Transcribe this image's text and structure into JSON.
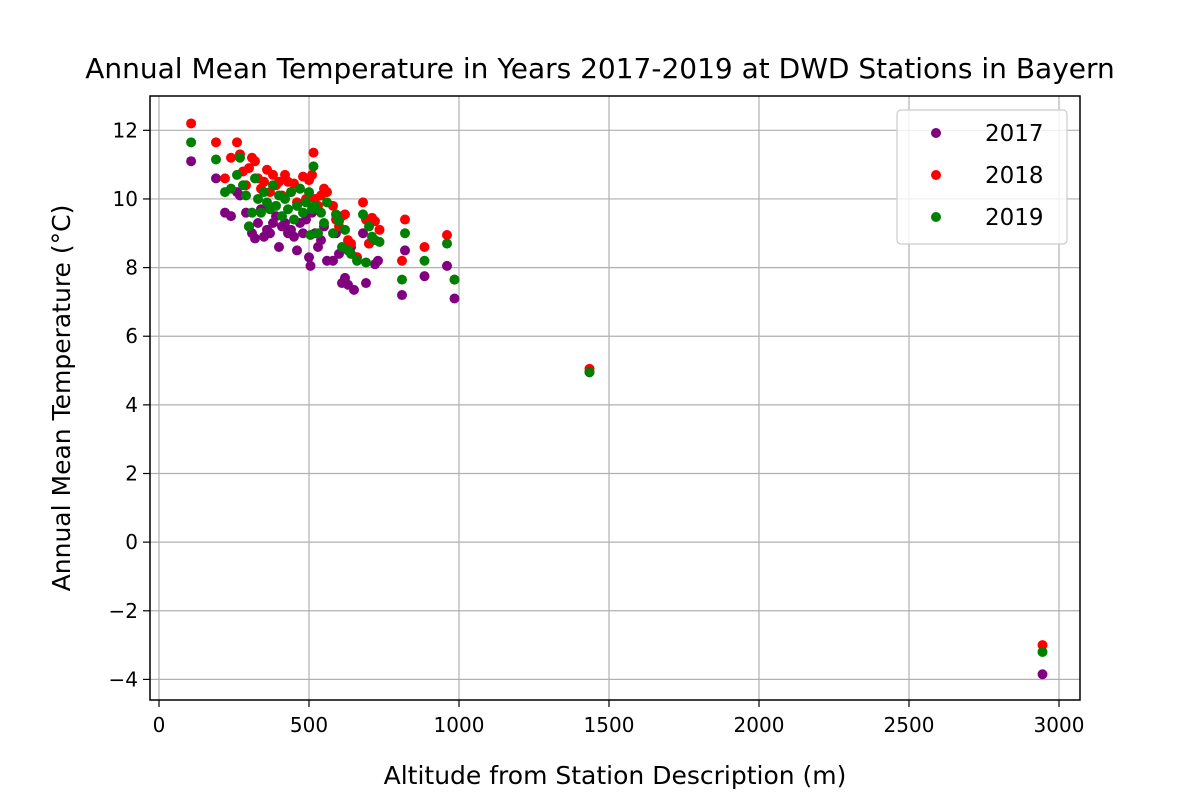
{
  "chart_data": {
    "type": "scatter",
    "title": "Annual Mean Temperature in Years 2017-2019 at DWD Stations in Bayern",
    "xlabel": "Altitude from Station Description (m)",
    "ylabel": "Annual Mean Temperature (°C)",
    "xlim": [
      -30,
      3070
    ],
    "ylim": [
      -4.6,
      13.0
    ],
    "xticks": [
      0,
      500,
      1000,
      1500,
      2000,
      2500,
      3000
    ],
    "yticks": [
      -4,
      -2,
      0,
      2,
      4,
      6,
      8,
      10,
      12
    ],
    "xtick_labels": [
      "0",
      "500",
      "1000",
      "1500",
      "2000",
      "2500",
      "3000"
    ],
    "ytick_labels": [
      "−4",
      "−2",
      "0",
      "2",
      "4",
      "6",
      "8",
      "10",
      "12"
    ],
    "grid": true,
    "legend_position": "upper right",
    "series": [
      {
        "name": "2017",
        "color": "#800080",
        "points": [
          [
            107,
            11.1
          ],
          [
            190,
            10.6
          ],
          [
            220,
            9.6
          ],
          [
            240,
            9.5
          ],
          [
            260,
            10.2
          ],
          [
            270,
            10.1
          ],
          [
            290,
            9.6
          ],
          [
            300,
            9.2
          ],
          [
            310,
            9.0
          ],
          [
            320,
            8.85
          ],
          [
            330,
            9.3
          ],
          [
            340,
            9.7
          ],
          [
            350,
            8.9
          ],
          [
            360,
            9.1
          ],
          [
            370,
            9.0
          ],
          [
            380,
            9.3
          ],
          [
            390,
            9.5
          ],
          [
            400,
            8.6
          ],
          [
            410,
            9.2
          ],
          [
            420,
            9.3
          ],
          [
            430,
            9.0
          ],
          [
            440,
            9.1
          ],
          [
            450,
            8.9
          ],
          [
            460,
            8.5
          ],
          [
            470,
            9.3
          ],
          [
            480,
            9.0
          ],
          [
            490,
            9.4
          ],
          [
            500,
            8.3
          ],
          [
            505,
            8.05
          ],
          [
            510,
            9.6
          ],
          [
            520,
            9.0
          ],
          [
            530,
            8.6
          ],
          [
            540,
            8.8
          ],
          [
            550,
            9.2
          ],
          [
            560,
            8.2
          ],
          [
            580,
            8.2
          ],
          [
            590,
            9.0
          ],
          [
            600,
            8.4
          ],
          [
            610,
            7.55
          ],
          [
            620,
            7.7
          ],
          [
            630,
            7.5
          ],
          [
            640,
            8.6
          ],
          [
            650,
            7.35
          ],
          [
            660,
            8.3
          ],
          [
            680,
            9.0
          ],
          [
            690,
            7.55
          ],
          [
            700,
            8.7
          ],
          [
            720,
            8.1
          ],
          [
            730,
            8.2
          ],
          [
            810,
            7.2
          ],
          [
            820,
            8.5
          ],
          [
            885,
            7.75
          ],
          [
            960,
            8.05
          ],
          [
            985,
            7.1
          ],
          [
            1435,
            4.95
          ],
          [
            2945,
            -3.85
          ]
        ]
      },
      {
        "name": "2018",
        "color": "#ff0000",
        "points": [
          [
            107,
            12.2
          ],
          [
            190,
            11.65
          ],
          [
            220,
            10.6
          ],
          [
            240,
            11.2
          ],
          [
            260,
            11.65
          ],
          [
            270,
            11.3
          ],
          [
            280,
            10.8
          ],
          [
            290,
            10.4
          ],
          [
            300,
            10.9
          ],
          [
            310,
            11.2
          ],
          [
            320,
            11.1
          ],
          [
            330,
            10.6
          ],
          [
            340,
            10.3
          ],
          [
            350,
            10.5
          ],
          [
            360,
            10.85
          ],
          [
            370,
            10.2
          ],
          [
            380,
            10.7
          ],
          [
            390,
            10.4
          ],
          [
            400,
            10.5
          ],
          [
            410,
            10.1
          ],
          [
            420,
            10.7
          ],
          [
            430,
            10.5
          ],
          [
            440,
            10.2
          ],
          [
            450,
            10.45
          ],
          [
            460,
            9.9
          ],
          [
            470,
            10.3
          ],
          [
            480,
            10.65
          ],
          [
            490,
            10.0
          ],
          [
            500,
            10.55
          ],
          [
            510,
            10.7
          ],
          [
            515,
            11.35
          ],
          [
            520,
            10.0
          ],
          [
            530,
            9.8
          ],
          [
            540,
            10.1
          ],
          [
            550,
            10.3
          ],
          [
            560,
            10.2
          ],
          [
            580,
            9.8
          ],
          [
            590,
            9.4
          ],
          [
            600,
            9.2
          ],
          [
            610,
            9.5
          ],
          [
            620,
            9.55
          ],
          [
            630,
            8.8
          ],
          [
            640,
            8.7
          ],
          [
            660,
            8.3
          ],
          [
            680,
            9.9
          ],
          [
            690,
            9.4
          ],
          [
            700,
            8.7
          ],
          [
            710,
            9.45
          ],
          [
            720,
            9.35
          ],
          [
            735,
            9.1
          ],
          [
            810,
            8.2
          ],
          [
            820,
            9.4
          ],
          [
            885,
            8.6
          ],
          [
            960,
            8.95
          ],
          [
            985,
            7.65
          ],
          [
            1435,
            5.05
          ],
          [
            2945,
            -3.0
          ]
        ]
      },
      {
        "name": "2019",
        "color": "#008000",
        "points": [
          [
            107,
            11.65
          ],
          [
            190,
            11.15
          ],
          [
            220,
            10.2
          ],
          [
            240,
            10.3
          ],
          [
            260,
            10.7
          ],
          [
            270,
            11.2
          ],
          [
            280,
            10.4
          ],
          [
            290,
            10.1
          ],
          [
            300,
            9.2
          ],
          [
            310,
            9.6
          ],
          [
            320,
            10.6
          ],
          [
            330,
            10.0
          ],
          [
            340,
            9.6
          ],
          [
            350,
            10.2
          ],
          [
            360,
            9.9
          ],
          [
            370,
            9.7
          ],
          [
            380,
            10.4
          ],
          [
            390,
            9.8
          ],
          [
            400,
            10.1
          ],
          [
            410,
            9.5
          ],
          [
            420,
            10.0
          ],
          [
            430,
            9.7
          ],
          [
            440,
            10.2
          ],
          [
            450,
            9.4
          ],
          [
            460,
            9.8
          ],
          [
            470,
            10.3
          ],
          [
            480,
            9.6
          ],
          [
            490,
            9.9
          ],
          [
            500,
            10.2
          ],
          [
            505,
            8.95
          ],
          [
            510,
            9.7
          ],
          [
            515,
            10.95
          ],
          [
            520,
            9.8
          ],
          [
            530,
            9.0
          ],
          [
            540,
            9.6
          ],
          [
            550,
            9.3
          ],
          [
            560,
            9.9
          ],
          [
            580,
            9.0
          ],
          [
            590,
            9.55
          ],
          [
            600,
            9.35
          ],
          [
            610,
            8.6
          ],
          [
            620,
            9.1
          ],
          [
            630,
            8.5
          ],
          [
            640,
            8.4
          ],
          [
            660,
            8.2
          ],
          [
            680,
            9.55
          ],
          [
            690,
            8.15
          ],
          [
            700,
            9.2
          ],
          [
            710,
            8.9
          ],
          [
            720,
            8.8
          ],
          [
            735,
            8.75
          ],
          [
            810,
            7.65
          ],
          [
            820,
            9.0
          ],
          [
            885,
            8.2
          ],
          [
            960,
            8.7
          ],
          [
            985,
            7.65
          ],
          [
            1435,
            4.95
          ],
          [
            2945,
            -3.2
          ]
        ]
      }
    ]
  }
}
